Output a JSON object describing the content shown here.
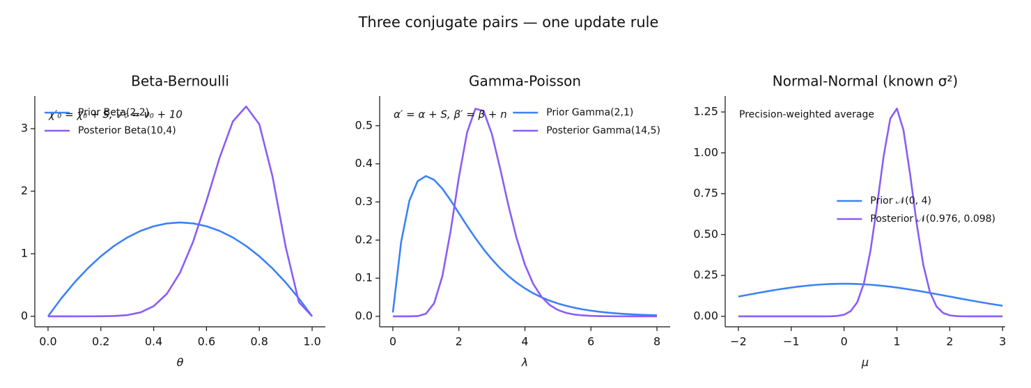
{
  "title": "Three conjugate pairs — one update rule",
  "chart_data": [
    {
      "type": "line",
      "title": "Beta-Bernoulli",
      "xlabel": "θ",
      "annotation": "χ′₀ = χ₀ + S,  ν′₀ = ν₀ + 10",
      "legend": "upper left",
      "x": [
        0,
        0.05,
        0.1,
        0.15,
        0.2,
        0.25,
        0.3,
        0.35,
        0.4,
        0.45,
        0.5,
        0.55,
        0.6,
        0.65,
        0.7,
        0.75,
        0.8,
        0.85,
        0.9,
        0.95,
        1
      ],
      "series": [
        {
          "name": "Prior Beta(2,2)",
          "color": "#3b82f6",
          "values": [
            0,
            0.285,
            0.54,
            0.765,
            0.96,
            1.125,
            1.26,
            1.365,
            1.44,
            1.485,
            1.5,
            1.485,
            1.44,
            1.365,
            1.26,
            1.125,
            0.96,
            0.765,
            0.54,
            0.285,
            0
          ]
        },
        {
          "name": "Posterior Beta(10,4)",
          "color": "#8b5cf6",
          "values": [
            0,
            0,
            0,
            0.0001,
            0.0008,
            0.0046,
            0.0193,
            0.0619,
            0.162,
            0.36,
            0.698,
            1.2,
            1.845,
            2.54,
            3.116,
            3.355,
            3.071,
            2.236,
            1.108,
            0.225,
            0
          ]
        }
      ],
      "xlim": [
        -0.05,
        1.05
      ],
      "ylim": [
        -0.168,
        3.523
      ],
      "xticks": [
        {
          "value": 0,
          "label": "0.0"
        },
        0.2,
        0.4,
        0.6,
        0.8,
        {
          "value": 1,
          "label": "1.0"
        }
      ],
      "yticks": [
        0,
        1,
        2,
        3
      ]
    },
    {
      "type": "line",
      "title": "Gamma-Poisson",
      "xlabel": "λ",
      "annotation": "α′ = α + S,  β′ = β + n",
      "legend": "upper right",
      "x": [
        0,
        0.25,
        0.5,
        0.75,
        1,
        1.25,
        1.5,
        1.75,
        2,
        2.25,
        2.5,
        2.75,
        3,
        3.25,
        3.5,
        3.75,
        4,
        4.25,
        4.5,
        4.75,
        5,
        5.25,
        5.5,
        5.75,
        6,
        6.25,
        6.5,
        6.75,
        7,
        7.25,
        7.5,
        7.75,
        8
      ],
      "series": [
        {
          "name": "Prior Gamma(2,1)",
          "color": "#3b82f6",
          "values": [
            0.01,
            0.1947,
            0.3033,
            0.3543,
            0.3679,
            0.3581,
            0.3347,
            0.3041,
            0.2707,
            0.2371,
            0.2052,
            0.1758,
            0.1494,
            0.126,
            0.1057,
            0.0882,
            0.0733,
            0.0606,
            0.05,
            0.0411,
            0.0337,
            0.0276,
            0.0225,
            0.0183,
            0.0149,
            0.0121,
            0.0098,
            0.0079,
            0.0064,
            0.0052,
            0.0042,
            0.0033,
            0.0027
          ]
        },
        {
          "name": "Posterior Gamma(14,5)",
          "color": "#8b5cf6",
          "values": [
            0,
            0,
            0,
            0.0006,
            0.0066,
            0.0344,
            0.1055,
            0.2242,
            0.3645,
            0.4829,
            0.5444,
            0.5385,
            0.478,
            0.3877,
            0.2911,
            0.2045,
            0.1356,
            0.0854,
            0.0514,
            0.0298,
            0.0166,
            0.009,
            0.0047,
            0.0024,
            0.0012,
            0.0006,
            0.0003,
            0.0001,
            0.0001,
            0,
            0,
            0,
            0
          ]
        }
      ],
      "xlim": [
        -0.4,
        8.4
      ],
      "ylim": [
        -0.0275,
        0.578
      ],
      "xticks": [
        0,
        2,
        4,
        6,
        8
      ],
      "yticks": [
        {
          "value": 0,
          "label": "0.0"
        },
        0.1,
        0.2,
        0.3,
        0.4,
        0.5
      ]
    },
    {
      "type": "line",
      "title": "Normal-Normal (known σ²)",
      "xlabel": "μ",
      "annotation": "Precision-weighted average",
      "legend": "center right",
      "x": [
        -2,
        -1.875,
        -1.75,
        -1.625,
        -1.5,
        -1.375,
        -1.25,
        -1.125,
        -1,
        -0.875,
        -0.75,
        -0.625,
        -0.5,
        -0.375,
        -0.25,
        -0.125,
        0,
        0.125,
        0.25,
        0.375,
        0.5,
        0.625,
        0.75,
        0.875,
        1,
        1.125,
        1.25,
        1.375,
        1.5,
        1.625,
        1.75,
        1.875,
        2,
        2.125,
        2.25,
        2.375,
        2.5,
        2.625,
        2.75,
        2.875,
        3
      ],
      "series": [
        {
          "name": "Prior 𝒩(0, 4)",
          "color": "#3b82f6",
          "values": [
            0.121,
            0.1285,
            0.136,
            0.1434,
            0.1506,
            0.1575,
            0.1641,
            0.1703,
            0.176,
            0.1813,
            0.1859,
            0.19,
            0.1933,
            0.196,
            0.1979,
            0.1991,
            0.1995,
            0.1991,
            0.1979,
            0.196,
            0.1933,
            0.19,
            0.1859,
            0.1813,
            0.176,
            0.1703,
            0.1641,
            0.1575,
            0.1506,
            0.1434,
            0.136,
            0.1285,
            0.121,
            0.1134,
            0.1059,
            0.0986,
            0.0913,
            0.0843,
            0.0775,
            0.071,
            0.0648
          ]
        },
        {
          "name": "Posterior 𝒩(0.976, 0.098)",
          "color": "#8b5cf6",
          "values": [
            0,
            0,
            0,
            0,
            0,
            0,
            0,
            0,
            0,
            0,
            0,
            0,
            0,
            0.0001,
            0.0006,
            0.0026,
            0.0099,
            0.0317,
            0.0866,
            0.2018,
            0.4012,
            0.6798,
            0.9821,
            1.2098,
            1.2707,
            1.1379,
            0.8689,
            0.5657,
            0.314,
            0.1486,
            0.0599,
            0.0206,
            0.0061,
            0.0015,
            0.0003,
            0.0001,
            0,
            0,
            0,
            0,
            0
          ]
        }
      ],
      "xlim": [
        -2.25,
        3.05
      ],
      "ylim": [
        -0.064,
        1.348
      ],
      "xticks": [
        {
          "value": -2,
          "label": "−2"
        },
        {
          "value": -1,
          "label": "−1"
        },
        0,
        1,
        2,
        3
      ],
      "yticks": [
        {
          "value": 0,
          "label": "0.00"
        },
        0.25,
        {
          "value": 0.5,
          "label": "0.50"
        },
        0.75,
        {
          "value": 1,
          "label": "1.00"
        },
        1.25
      ]
    }
  ]
}
